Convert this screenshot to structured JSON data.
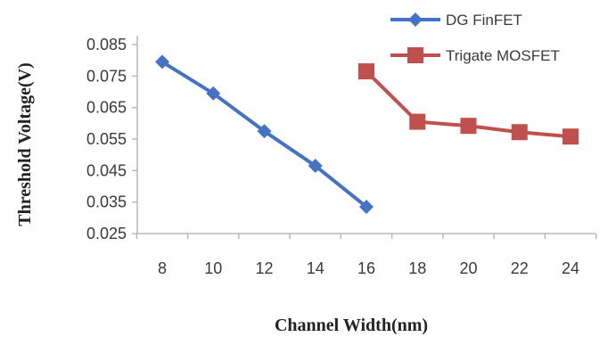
{
  "chart_data": {
    "type": "line",
    "title": "",
    "xlabel": "Channel Width(nm)",
    "ylabel": "Threshold Voltage(V)",
    "categories": [
      "8",
      "10",
      "12",
      "14",
      "16",
      "18",
      "20",
      "22",
      "24"
    ],
    "ylim": [
      0.025,
      0.085
    ],
    "yticks": [
      "0.085",
      "0.075",
      "0.065",
      "0.055",
      "0.045",
      "0.035",
      "0.025"
    ],
    "grid": false,
    "legend_position": "top-right",
    "series": [
      {
        "name": "DG FinFET",
        "marker": "diamond",
        "color": "#4472C4",
        "x": [
          8,
          10,
          12,
          14,
          16
        ],
        "values": [
          0.0795,
          0.0695,
          0.0575,
          0.0465,
          0.0335
        ]
      },
      {
        "name": "Trigate MOSFET",
        "marker": "square",
        "color": "#C0504D",
        "x": [
          16,
          18,
          20,
          22,
          24
        ],
        "values": [
          0.0765,
          0.0605,
          0.0592,
          0.0572,
          0.0558
        ]
      }
    ]
  }
}
